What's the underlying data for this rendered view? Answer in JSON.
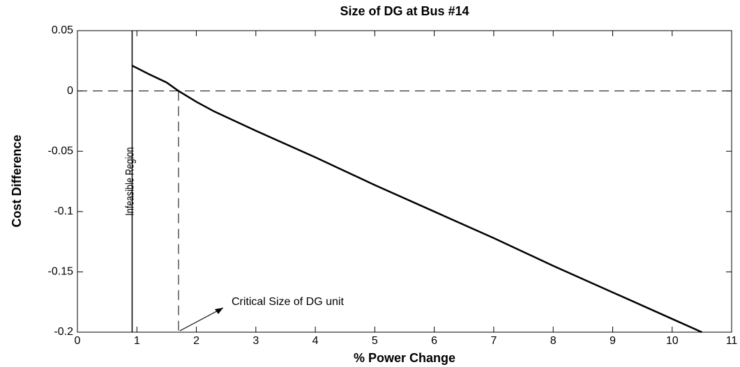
{
  "chart_data": {
    "type": "line",
    "title": "Size of DG at Bus #14",
    "xlabel": "% Power Change",
    "ylabel": "Cost Difference",
    "x": [
      0.92,
      1.0,
      1.2,
      1.5,
      1.7,
      2.0,
      2.3,
      3,
      4,
      5,
      6,
      7,
      8,
      9,
      10,
      10.5
    ],
    "series": [
      {
        "color": "#000000",
        "values": [
          0.021,
          0.019,
          0.014,
          0.007,
          0.0,
          -0.009,
          -0.017,
          -0.033,
          -0.055,
          -0.078,
          -0.1,
          -0.122,
          -0.145,
          -0.167,
          -0.189,
          -0.2
        ]
      }
    ],
    "xlim": [
      0,
      11
    ],
    "ylim": [
      -0.2,
      0.05
    ],
    "xticks": [
      0,
      1,
      2,
      3,
      4,
      5,
      6,
      7,
      8,
      9,
      10,
      11
    ],
    "yticks": [
      -0.2,
      -0.15,
      -0.1,
      -0.05,
      0,
      0.05
    ],
    "zero_line": 0,
    "infeasible_x": 0.92,
    "critical_x": 1.7,
    "annotations": {
      "infeasible": "Infeasible Region",
      "critical": "Critical Size of DG unit"
    }
  }
}
